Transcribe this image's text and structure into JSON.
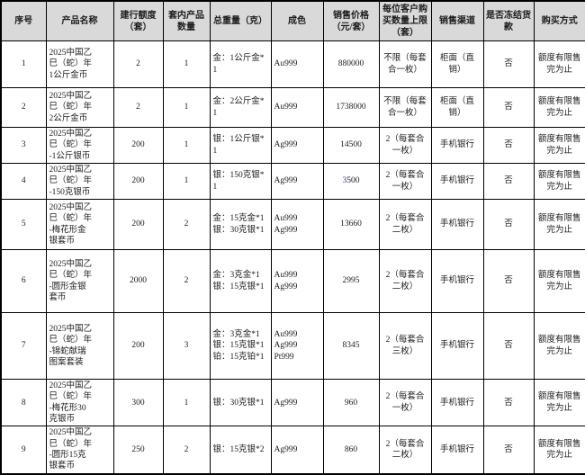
{
  "colors": {
    "border": "#000000",
    "header_bg": "#d9d9d9",
    "text": "#1c1c1c",
    "price_accent": "#3333aa"
  },
  "table": {
    "headers": [
      "序号",
      "产品名称",
      "建行额度（套）",
      "套内产品数量",
      "总重量（克）",
      "成色",
      "销售价格（元/套）",
      "每位客户购买数量上限（套）",
      "销售渠道",
      "是否冻结货款",
      "购买方式"
    ],
    "rows": [
      {
        "seq": "1",
        "name_lines": [
          "2025中国乙",
          "巳（蛇）年",
          "1公斤金币"
        ],
        "quota": "2",
        "set_count": "1",
        "weight_lines": [
          "金：1公斤金*1"
        ],
        "fineness_lines": [
          "Au999"
        ],
        "price": "880000",
        "price_accent": false,
        "limit": "不限（每套合一枚）",
        "channel": "柜面（直销）",
        "freeze": "否",
        "method": "额度有限售完为止"
      },
      {
        "seq": "2",
        "name_lines": [
          "2025中国乙",
          "巳（蛇）年",
          "2公斤金币"
        ],
        "quota": "2",
        "set_count": "1",
        "weight_lines": [
          "金：2公斤金*1"
        ],
        "fineness_lines": [
          "Au999"
        ],
        "price": "1738000",
        "price_accent": false,
        "limit": "不限（每套合一枚）",
        "channel": "柜面（直销）",
        "freeze": "否",
        "method": "额度有限售完为止"
      },
      {
        "seq": "3",
        "name_lines": [
          "2025中国乙",
          "巳（蛇）年",
          "-1公斤银币"
        ],
        "quota": "200",
        "set_count": "1",
        "weight_lines": [
          "银：1公斤银*1"
        ],
        "fineness_lines": [
          "Ag999"
        ],
        "price": "14500",
        "price_accent": false,
        "limit": "2（每套合一枚）",
        "channel": "手机银行",
        "freeze": "否",
        "method": "额度有限售完为止"
      },
      {
        "seq": "4",
        "name_lines": [
          "2025中国乙",
          "巳（蛇）年",
          "-150克银币"
        ],
        "quota": "200",
        "set_count": "1",
        "weight_lines": [
          "银：150克银*1"
        ],
        "fineness_lines": [
          "Ag999"
        ],
        "price": "3500",
        "price_accent": true,
        "limit": "2（每套合一枚）",
        "channel": "手机银行",
        "freeze": "否",
        "method": "额度有限售完为止"
      },
      {
        "seq": "5",
        "name_lines": [
          "2025中国乙",
          "巳（蛇）年",
          "-梅花形金",
          "银套币"
        ],
        "quota": "200",
        "set_count": "2",
        "weight_lines": [
          "金：15克金*1",
          "银：30克银*1"
        ],
        "fineness_lines": [
          "Au999",
          "Ag999"
        ],
        "price": "13660",
        "price_accent": false,
        "limit": "2（每套合二枚）",
        "channel": "手机银行",
        "freeze": "否",
        "method": "额度有限售完为止"
      },
      {
        "seq": "6",
        "name_lines": [
          "2025中国乙",
          "巳（蛇）年",
          "-圆形金银",
          "套币"
        ],
        "quota": "2000",
        "set_count": "2",
        "weight_lines": [
          "金：3克金*1",
          "银：15克银*1"
        ],
        "fineness_lines": [
          "Au999",
          "Ag999"
        ],
        "price": "2995",
        "price_accent": false,
        "limit": "2（每套合二枚）",
        "channel": "手机银行",
        "freeze": "否",
        "method": "额度有限售完为止"
      },
      {
        "seq": "7",
        "name_lines": [
          "2025中国乙",
          "巳（蛇）年",
          "-锦蛇献瑞",
          "图案套装"
        ],
        "quota": "200",
        "set_count": "3",
        "weight_lines": [
          "金：3克金*1",
          "银：15克银*1",
          "铂：15克铂*1"
        ],
        "fineness_lines": [
          "Au999",
          "Ag999",
          "Pt999"
        ],
        "price": "8345",
        "price_accent": false,
        "limit": "2（每套合三枚）",
        "channel": "手机银行",
        "freeze": "否",
        "method": "额度有限售完为止"
      },
      {
        "seq": "8",
        "name_lines": [
          "2025中国乙",
          "巳（蛇）年",
          "-梅花形30",
          "克银币"
        ],
        "quota": "300",
        "set_count": "1",
        "weight_lines": [
          "银：30克银*1"
        ],
        "fineness_lines": [
          "Ag999"
        ],
        "price": "960",
        "price_accent": false,
        "limit": "2（每套合一枚）",
        "channel": "手机银行",
        "freeze": "否",
        "method": "额度有限售完为止"
      },
      {
        "seq": "9",
        "name_lines": [
          "2025中国乙",
          "巳（蛇）年",
          "-圆形15克",
          "银套币"
        ],
        "quota": "250",
        "set_count": "2",
        "weight_lines": [
          "银：15克银*2"
        ],
        "fineness_lines": [
          "Ag999"
        ],
        "price": "860",
        "price_accent": false,
        "limit": "2（每套合二枚）",
        "channel": "手机银行",
        "freeze": "否",
        "method": "额度有限售完为止"
      }
    ]
  }
}
